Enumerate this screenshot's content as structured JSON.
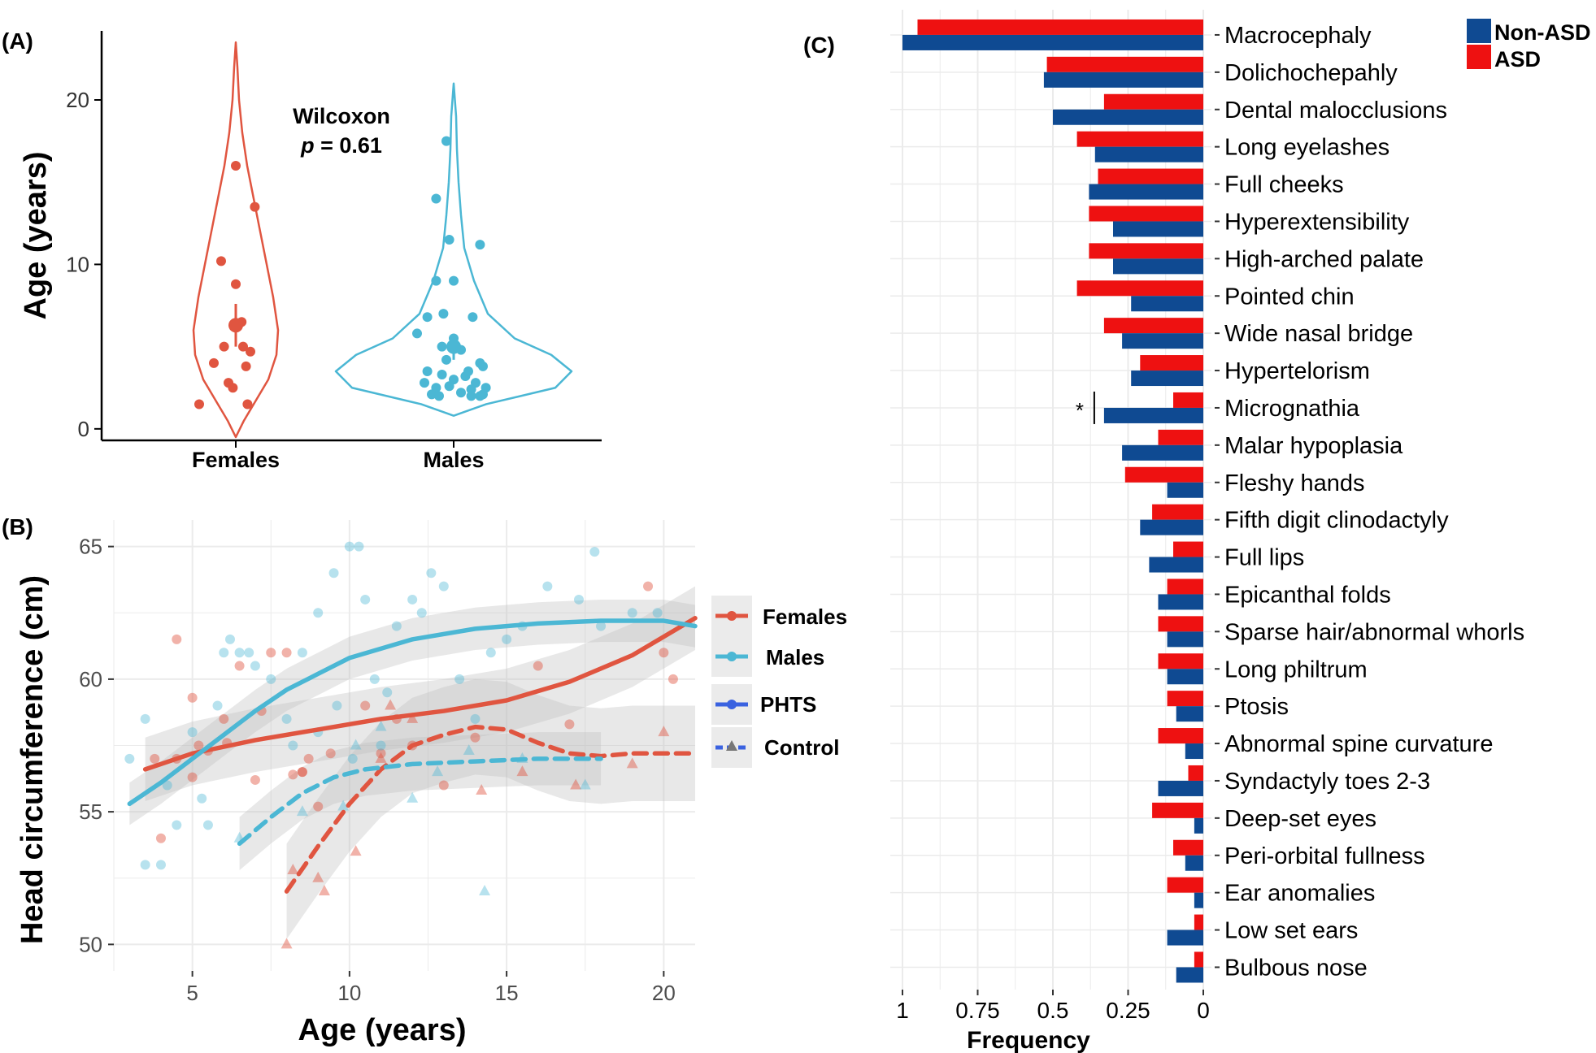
{
  "panels": {
    "a_label": "(A)",
    "b_label": "(B)",
    "c_label": "(C)"
  },
  "colors": {
    "female": "#e05540",
    "male": "#4bb7d4",
    "asd": "#ee1111",
    "non_asd": "#0f4a92"
  },
  "chart_data": [
    {
      "type": "scatter",
      "subtype": "violin",
      "panel": "A",
      "ylabel": "Age (years)",
      "xlabel": "",
      "categories": [
        "Females",
        "Males"
      ],
      "ylim": [
        0,
        24
      ],
      "yticks": [
        0,
        10,
        20
      ],
      "annotation": {
        "line1": "Wilcoxon",
        "line2_italic": "p",
        "line2_rest": " = 0.61"
      },
      "series": [
        {
          "name": "Females",
          "points": [
            [
              -0.25,
              1.5
            ],
            [
              -0.15,
              4.0
            ],
            [
              -0.1,
              10.2
            ],
            [
              -0.05,
              2.8
            ],
            [
              -0.08,
              5.0
            ],
            [
              0.0,
              16.0
            ],
            [
              -0.02,
              2.5
            ],
            [
              0.0,
              8.8
            ],
            [
              0.05,
              5.0
            ],
            [
              0.1,
              4.7
            ],
            [
              0.13,
              13.5
            ],
            [
              0.0,
              6.3
            ],
            [
              0.04,
              6.5
            ],
            [
              0.07,
              3.8
            ],
            [
              0.08,
              1.5
            ]
          ],
          "mean": 6.3,
          "ci": [
            5.0,
            7.6
          ]
        },
        {
          "name": "Males",
          "points": [
            [
              -0.05,
              17.5
            ],
            [
              -0.12,
              14.0
            ],
            [
              -0.03,
              11.5
            ],
            [
              0.18,
              11.2
            ],
            [
              -0.12,
              9.0
            ],
            [
              0.0,
              9.0
            ],
            [
              0.13,
              6.8
            ],
            [
              -0.18,
              6.8
            ],
            [
              -0.07,
              7.0
            ],
            [
              -0.25,
              5.8
            ],
            [
              -0.08,
              5.0
            ],
            [
              0.0,
              5.5
            ],
            [
              0.05,
              4.8
            ],
            [
              0.18,
              4.0
            ],
            [
              0.2,
              3.8
            ],
            [
              -0.18,
              3.5
            ],
            [
              -0.08,
              3.3
            ],
            [
              0.0,
              3.0
            ],
            [
              0.08,
              3.2
            ],
            [
              0.15,
              2.8
            ],
            [
              -0.12,
              2.5
            ],
            [
              -0.03,
              2.6
            ],
            [
              0.05,
              2.2
            ],
            [
              0.12,
              2.4
            ],
            [
              -0.15,
              2.1
            ],
            [
              0.18,
              2.0
            ],
            [
              0.22,
              2.5
            ],
            [
              -0.2,
              2.8
            ],
            [
              0.1,
              3.5
            ],
            [
              -0.05,
              4.2
            ],
            [
              0.12,
              2.0
            ],
            [
              -0.1,
              2.0
            ],
            [
              0.2,
              2.1
            ]
          ],
          "mean": 5.0,
          "ci": [
            4.2,
            5.6
          ]
        }
      ]
    },
    {
      "type": "line",
      "panel": "B",
      "xlabel": "Age (years)",
      "ylabel": "Head circumference (cm)",
      "xlim": [
        2.5,
        21.0
      ],
      "ylim": [
        49.0,
        66.0
      ],
      "xticks": [
        5,
        10,
        15,
        20
      ],
      "yticks": [
        50,
        55,
        60,
        65
      ],
      "legend": [
        {
          "label": "Females",
          "style": "female"
        },
        {
          "label": "Males",
          "style": "male"
        },
        {
          "label": "PHTS",
          "style": "phts"
        },
        {
          "label": "Control",
          "style": "control"
        }
      ],
      "series": [
        {
          "name": "Females PHTS",
          "x": [
            3.5,
            5,
            7,
            9,
            11,
            13,
            15,
            17,
            19,
            21
          ],
          "y": [
            56.6,
            57.2,
            57.7,
            58.1,
            58.5,
            58.8,
            59.2,
            59.9,
            60.9,
            62.3
          ]
        },
        {
          "name": "Males PHTS",
          "x": [
            3,
            4,
            5,
            6,
            7,
            8,
            9,
            10,
            12,
            14,
            16,
            18,
            20,
            21
          ],
          "y": [
            55.3,
            56.1,
            57.0,
            57.9,
            58.8,
            59.6,
            60.2,
            60.8,
            61.5,
            61.9,
            62.1,
            62.2,
            62.2,
            62.0
          ]
        },
        {
          "name": "Females Control",
          "x": [
            8,
            9,
            10,
            11,
            12,
            13,
            14,
            15,
            16,
            17,
            18,
            19,
            21
          ],
          "y": [
            52.0,
            53.7,
            55.3,
            56.6,
            57.5,
            57.9,
            58.2,
            58.1,
            57.6,
            57.2,
            57.1,
            57.2,
            57.2
          ]
        },
        {
          "name": "Males Control",
          "x": [
            6.5,
            7.5,
            8.5,
            9.5,
            10.5,
            12,
            14,
            16,
            18
          ],
          "y": [
            53.8,
            54.8,
            55.7,
            56.3,
            56.6,
            56.8,
            56.9,
            57.0,
            57.0
          ]
        }
      ],
      "scatter_female": [
        [
          3.8,
          57.0
        ],
        [
          4.5,
          61.5
        ],
        [
          4.0,
          54.0
        ],
        [
          5.0,
          59.3
        ],
        [
          5.2,
          57.5
        ],
        [
          5.5,
          57.3
        ],
        [
          6.0,
          58.5
        ],
        [
          6.1,
          57.6
        ],
        [
          6.5,
          60.5
        ],
        [
          7.0,
          56.2
        ],
        [
          7.2,
          58.8
        ],
        [
          7.5,
          61.0
        ],
        [
          8.2,
          56.4
        ],
        [
          8.5,
          56.5
        ],
        [
          8.7,
          57.0
        ],
        [
          9.0,
          55.2
        ],
        [
          9.4,
          57.2
        ],
        [
          10.5,
          59.0
        ],
        [
          11.0,
          57.2
        ],
        [
          11.5,
          58.5
        ],
        [
          12.0,
          57.5
        ],
        [
          13.0,
          56.0
        ],
        [
          14.0,
          57.8
        ],
        [
          16.0,
          60.5
        ],
        [
          17.0,
          58.3
        ],
        [
          19.5,
          63.5
        ],
        [
          20.0,
          61.0
        ],
        [
          20.3,
          60.0
        ],
        [
          8.0,
          61.0
        ],
        [
          8.5,
          56.5
        ],
        [
          5.0,
          56.3
        ],
        [
          4.5,
          57.0
        ]
      ],
      "scatter_male": [
        [
          3.0,
          57.0
        ],
        [
          3.5,
          58.5
        ],
        [
          3.5,
          53.0
        ],
        [
          4.0,
          53.0
        ],
        [
          4.2,
          56.0
        ],
        [
          4.5,
          54.5
        ],
        [
          5.0,
          58.0
        ],
        [
          5.3,
          55.5
        ],
        [
          5.5,
          54.5
        ],
        [
          5.8,
          59.0
        ],
        [
          6.0,
          61.0
        ],
        [
          6.2,
          61.5
        ],
        [
          6.5,
          61.0
        ],
        [
          6.8,
          61.0
        ],
        [
          7.0,
          60.5
        ],
        [
          7.5,
          60.0
        ],
        [
          8.0,
          58.5
        ],
        [
          8.5,
          61.0
        ],
        [
          9.0,
          62.5
        ],
        [
          9.5,
          64.0
        ],
        [
          10.0,
          65.0
        ],
        [
          10.3,
          65.0
        ],
        [
          10.5,
          63.0
        ],
        [
          10.8,
          60.0
        ],
        [
          11.2,
          59.5
        ],
        [
          11.5,
          62.0
        ],
        [
          12.0,
          63.0
        ],
        [
          12.3,
          62.5
        ],
        [
          12.6,
          64.0
        ],
        [
          13.0,
          63.5
        ],
        [
          13.5,
          60.0
        ],
        [
          14.0,
          58.5
        ],
        [
          14.5,
          61.0
        ],
        [
          15.0,
          61.5
        ],
        [
          15.5,
          62.0
        ],
        [
          16.3,
          63.5
        ],
        [
          17.3,
          63.0
        ],
        [
          17.8,
          64.8
        ],
        [
          18.0,
          62.0
        ],
        [
          19.0,
          62.5
        ],
        [
          19.8,
          62.5
        ],
        [
          9.6,
          59.0
        ],
        [
          10.1,
          57.0
        ],
        [
          11.0,
          57.5
        ],
        [
          9.0,
          58.0
        ],
        [
          8.2,
          57.5
        ]
      ],
      "tri_female": [
        [
          8.0,
          50.0
        ],
        [
          8.2,
          52.8
        ],
        [
          9.0,
          52.5
        ],
        [
          9.2,
          52.0
        ],
        [
          10.2,
          53.5
        ],
        [
          11.0,
          57.0
        ],
        [
          11.3,
          59.0
        ],
        [
          12.0,
          58.5
        ],
        [
          14.2,
          55.8
        ],
        [
          15.5,
          56.5
        ],
        [
          17.2,
          56.0
        ],
        [
          19.0,
          56.8
        ],
        [
          20.0,
          58.0
        ]
      ],
      "tri_male": [
        [
          6.5,
          54.0
        ],
        [
          8.5,
          55.0
        ],
        [
          9.8,
          55.2
        ],
        [
          10.2,
          57.5
        ],
        [
          11.0,
          58.2
        ],
        [
          12.8,
          56.5
        ],
        [
          13.8,
          57.3
        ],
        [
          14.3,
          52.0
        ],
        [
          15.5,
          57.0
        ],
        [
          17.5,
          56.0
        ],
        [
          12.0,
          55.5
        ]
      ]
    },
    {
      "type": "bar",
      "panel": "C",
      "orientation": "horizontal",
      "xlabel": "Frequency",
      "xlim": [
        0,
        1.02
      ],
      "xticks_labels": [
        "1",
        "0.75",
        "0.5",
        "0.25",
        "0"
      ],
      "xticks": [
        1,
        0.75,
        0.5,
        0.25,
        0
      ],
      "x_reversed": true,
      "legend": [
        {
          "label": "Non-ASD",
          "color_key": "non_asd"
        },
        {
          "label": "ASD",
          "color_key": "asd"
        }
      ],
      "categories": [
        "Macrocephaly",
        "Dolichochepahly",
        "Dental malocclusions",
        "Long eyelashes",
        "Full cheeks",
        "Hyperextensibility",
        "High-arched palate",
        "Pointed chin",
        "Wide nasal bridge",
        "Hypertelorism",
        "Micrognathia",
        "Malar hypoplasia",
        "Fleshy hands",
        "Fifth digit clinodactyly",
        "Full lips",
        "Epicanthal folds",
        "Sparse hair/abnormal whorls",
        "Long philtrum",
        "Ptosis",
        "Abnormal spine curvature",
        "Syndactyly toes 2-3",
        "Deep-set eyes",
        "Peri-orbital fullness",
        "Ear anomalies",
        "Low set ears",
        "Bulbous nose"
      ],
      "series": [
        {
          "name": "ASD",
          "values": [
            0.95,
            0.52,
            0.33,
            0.42,
            0.35,
            0.38,
            0.38,
            0.42,
            0.33,
            0.21,
            0.1,
            0.15,
            0.26,
            0.17,
            0.1,
            0.12,
            0.15,
            0.15,
            0.12,
            0.15,
            0.05,
            0.17,
            0.1,
            0.12,
            0.03,
            0.03
          ]
        },
        {
          "name": "Non-ASD",
          "values": [
            1.0,
            0.53,
            0.5,
            0.36,
            0.38,
            0.3,
            0.3,
            0.24,
            0.27,
            0.24,
            0.33,
            0.27,
            0.12,
            0.21,
            0.18,
            0.15,
            0.12,
            0.12,
            0.09,
            0.06,
            0.15,
            0.03,
            0.06,
            0.03,
            0.12,
            0.09
          ]
        }
      ],
      "significance": {
        "category": "Micrognathia",
        "mark": "*"
      }
    }
  ]
}
